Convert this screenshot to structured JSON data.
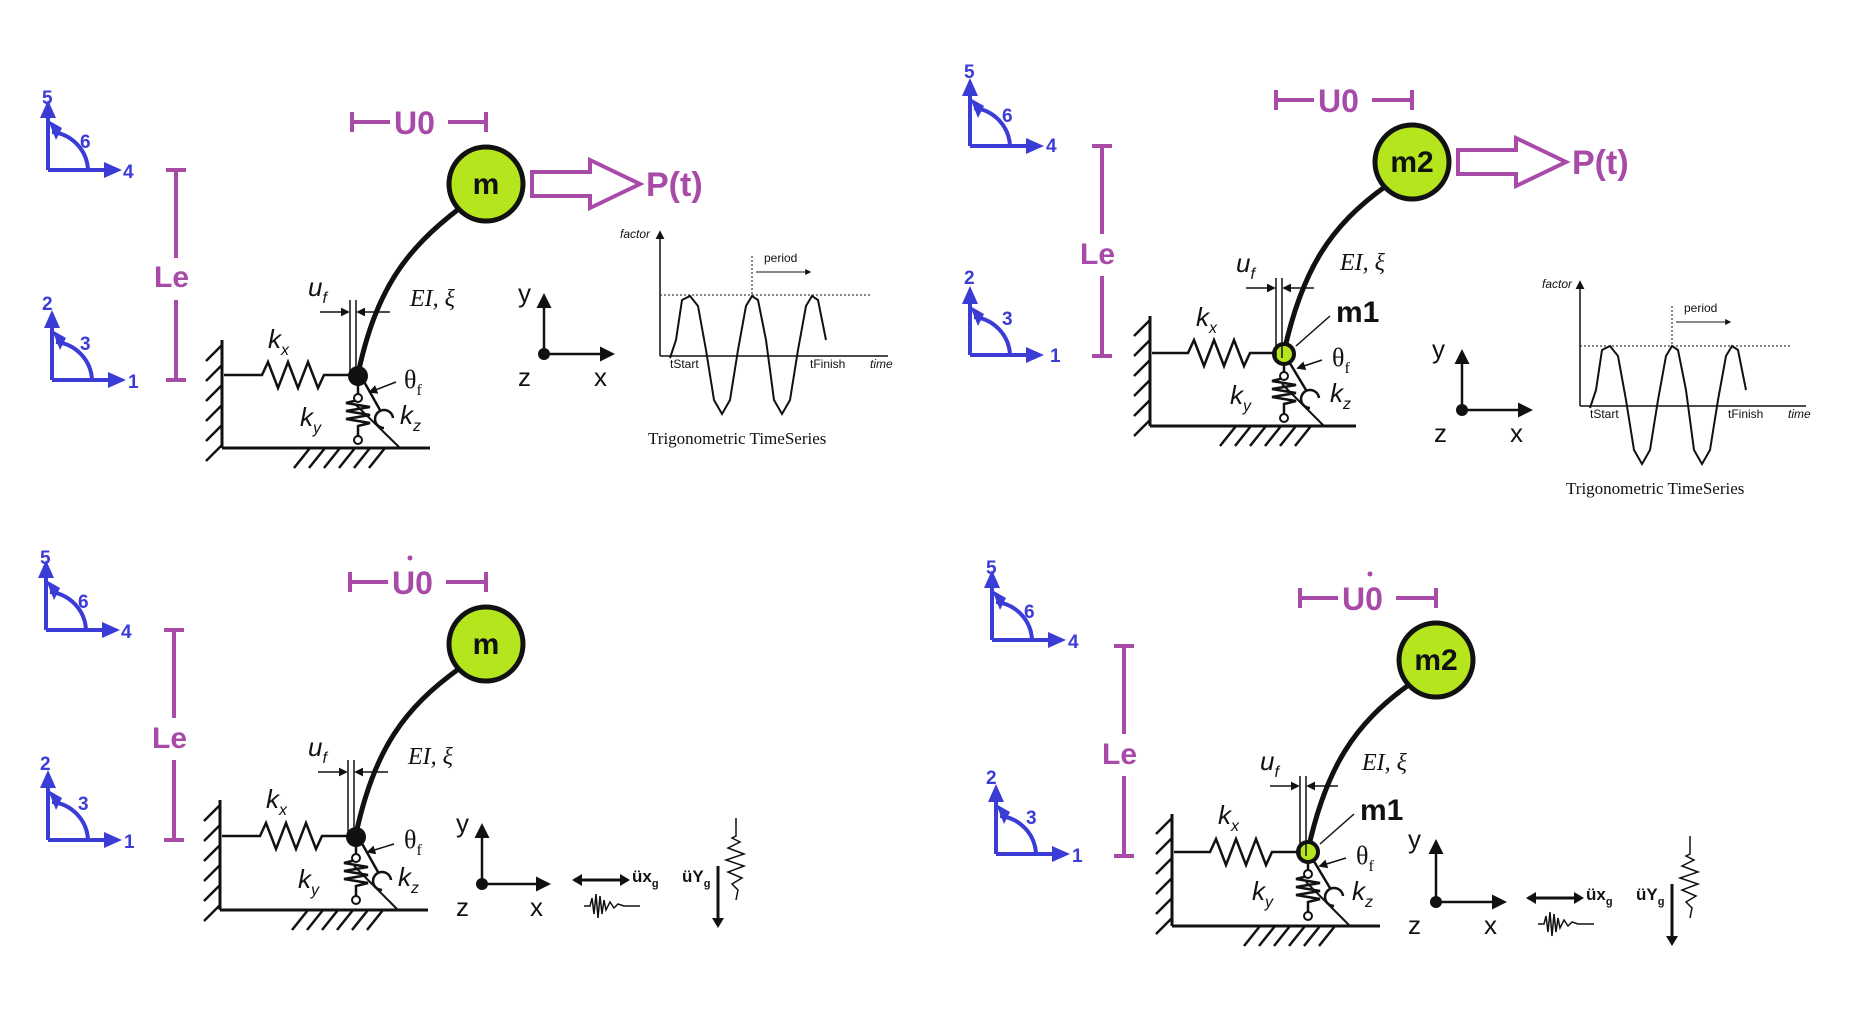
{
  "colors": {
    "dof_axes": "#3b3bd6",
    "dimension": "#a84aa8",
    "mass_fill": "#b5e61d",
    "ink": "#111111"
  },
  "panels": [
    {
      "dofs": {
        "upper": [
          "5",
          "6",
          "4"
        ],
        "lower": [
          "2",
          "3",
          "1"
        ]
      },
      "length_label": "Le",
      "displacement_label": "U0",
      "mass_label": "m",
      "load_label": "P(t)",
      "uf": "u",
      "uf_sub": "f",
      "ei": "EI, ξ",
      "kx": "k",
      "kx_sub": "x",
      "ky": "k",
      "ky_sub": "y",
      "kz": "k",
      "kz_sub": "z",
      "theta": "θ",
      "theta_sub": "f",
      "coord": {
        "y": "y",
        "z": "z",
        "x": "x"
      },
      "timeseries": {
        "factor": "factor",
        "period": "period",
        "t_start": "tStart",
        "t_finish": "tFinish",
        "time": "time",
        "caption": "Trigonometric TimeSeries"
      }
    },
    {
      "dofs": {
        "upper": [
          "5",
          "6",
          "4"
        ],
        "lower": [
          "2",
          "3",
          "1"
        ]
      },
      "length_label": "Le",
      "displacement_label": "U0",
      "mass_label": "m2",
      "foot_mass_label": "m1",
      "load_label": "P(t)",
      "uf": "u",
      "uf_sub": "f",
      "ei": "EI, ξ",
      "kx": "k",
      "kx_sub": "x",
      "ky": "k",
      "ky_sub": "y",
      "kz": "k",
      "kz_sub": "z",
      "theta": "θ",
      "theta_sub": "f",
      "coord": {
        "y": "y",
        "z": "z",
        "x": "x"
      },
      "timeseries": {
        "factor": "factor",
        "period": "period",
        "t_start": "tStart",
        "t_finish": "tFinish",
        "time": "time",
        "caption": "Trigonometric TimeSeries"
      }
    },
    {
      "dofs": {
        "upper": [
          "5",
          "6",
          "4"
        ],
        "lower": [
          "2",
          "3",
          "1"
        ]
      },
      "length_label": "Le",
      "displacement_label": "U0",
      "mass_label": "m",
      "uf": "u",
      "uf_sub": "f",
      "ei": "EI, ξ",
      "kx": "k",
      "kx_sub": "x",
      "ky": "k",
      "ky_sub": "y",
      "kz": "k",
      "kz_sub": "z",
      "theta": "θ",
      "theta_sub": "f",
      "coord": {
        "y": "y",
        "z": "z",
        "x": "x"
      },
      "ground": {
        "ux": "üx",
        "ux_sub": "g",
        "uy": "üY",
        "uy_sub": "g"
      }
    },
    {
      "dofs": {
        "upper": [
          "5",
          "6",
          "4"
        ],
        "lower": [
          "2",
          "3",
          "1"
        ]
      },
      "length_label": "Le",
      "displacement_label": "U0",
      "mass_label": "m2",
      "foot_mass_label": "m1",
      "uf": "u",
      "uf_sub": "f",
      "ei": "EI, ξ",
      "kx": "k",
      "kx_sub": "x",
      "ky": "k",
      "ky_sub": "y",
      "kz": "k",
      "kz_sub": "z",
      "theta": "θ",
      "theta_sub": "f",
      "coord": {
        "y": "y",
        "z": "z",
        "x": "x"
      },
      "ground": {
        "ux": "üx",
        "ux_sub": "g",
        "uy": "üY",
        "uy_sub": "g"
      }
    }
  ]
}
